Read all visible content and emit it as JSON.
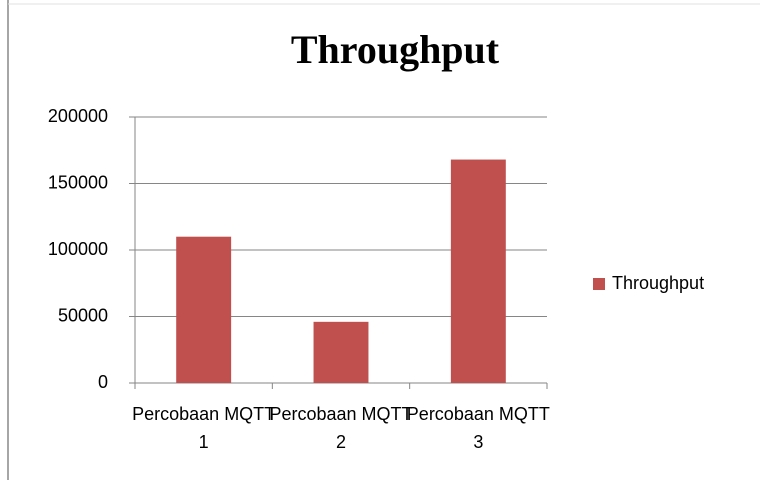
{
  "chart_data": {
    "type": "bar",
    "title": "Throughput",
    "categories": [
      "Percobaan MQTT 1",
      "Percobaan MQTT 2",
      "Percobaan MQTT 3"
    ],
    "series": [
      {
        "name": "Throughput",
        "color": "#c0504d",
        "values": [
          110000,
          46000,
          168000
        ]
      }
    ],
    "ylim": [
      0,
      200000
    ],
    "yticks": [
      0,
      50000,
      100000,
      150000,
      200000
    ],
    "grid": true,
    "legend": "right"
  }
}
